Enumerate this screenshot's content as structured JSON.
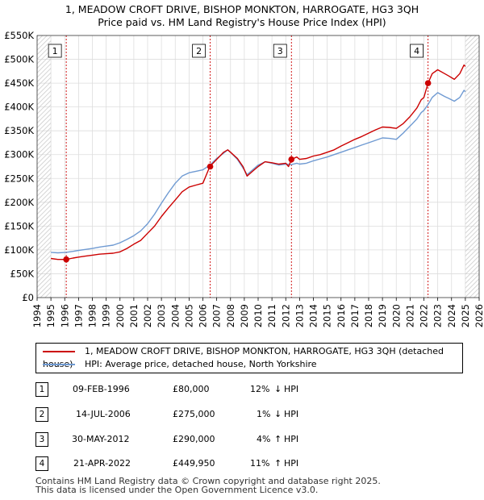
{
  "title_line1": "1, MEADOW CROFT DRIVE, BISHOP MONKTON, HARROGATE, HG3 3QH",
  "title_line2": "Price paid vs. HM Land Registry's House Price Index (HPI)",
  "colors": {
    "property": "#cc0000",
    "hpi": "#6f9ad2",
    "marker_line": "#cc0000",
    "future_hatch": "#cccccc"
  },
  "chart_data": {
    "type": "line",
    "xlim": [
      1994,
      2026
    ],
    "ylim": [
      0,
      550000
    ],
    "y_ticks": [
      {
        "value": 0,
        "label": "£0"
      },
      {
        "value": 50000,
        "label": "£50K"
      },
      {
        "value": 100000,
        "label": "£100K"
      },
      {
        "value": 150000,
        "label": "£150K"
      },
      {
        "value": 200000,
        "label": "£200K"
      },
      {
        "value": 250000,
        "label": "£250K"
      },
      {
        "value": 300000,
        "label": "£300K"
      },
      {
        "value": 350000,
        "label": "£350K"
      },
      {
        "value": 400000,
        "label": "£400K"
      },
      {
        "value": 450000,
        "label": "£450K"
      },
      {
        "value": 500000,
        "label": "£500K"
      },
      {
        "value": 550000,
        "label": "£550K"
      }
    ],
    "x_ticks": [
      1994,
      1995,
      1996,
      1997,
      1998,
      1999,
      2000,
      2001,
      2002,
      2003,
      2004,
      2005,
      2006,
      2007,
      2008,
      2009,
      2010,
      2011,
      2012,
      2013,
      2014,
      2015,
      2016,
      2017,
      2018,
      2019,
      2020,
      2021,
      2022,
      2023,
      2024,
      2025,
      2026
    ],
    "hatched_regions": [
      [
        1994,
        1995.0
      ],
      [
        2025.0,
        2026
      ]
    ],
    "series": [
      {
        "name": "property",
        "points": [
          [
            1995.0,
            82000
          ],
          [
            1995.5,
            80000
          ],
          [
            1996.1,
            80000
          ],
          [
            1996.6,
            83000
          ],
          [
            1997.0,
            85000
          ],
          [
            1997.5,
            87000
          ],
          [
            1998.0,
            89000
          ],
          [
            1998.5,
            91000
          ],
          [
            1999.0,
            92000
          ],
          [
            1999.5,
            93000
          ],
          [
            2000.0,
            96000
          ],
          [
            2000.5,
            103000
          ],
          [
            2001.0,
            112000
          ],
          [
            2001.5,
            120000
          ],
          [
            2002.0,
            135000
          ],
          [
            2002.5,
            150000
          ],
          [
            2003.0,
            170000
          ],
          [
            2003.5,
            188000
          ],
          [
            2004.0,
            205000
          ],
          [
            2004.5,
            222000
          ],
          [
            2005.0,
            232000
          ],
          [
            2005.5,
            236000
          ],
          [
            2006.0,
            240000
          ],
          [
            2006.5,
            275000
          ],
          [
            2007.0,
            290000
          ],
          [
            2007.5,
            305000
          ],
          [
            2007.8,
            310000
          ],
          [
            2008.0,
            305000
          ],
          [
            2008.5,
            292000
          ],
          [
            2008.9,
            275000
          ],
          [
            2009.2,
            255000
          ],
          [
            2009.6,
            265000
          ],
          [
            2010.0,
            275000
          ],
          [
            2010.5,
            285000
          ],
          [
            2011.0,
            283000
          ],
          [
            2011.5,
            280000
          ],
          [
            2012.0,
            282000
          ],
          [
            2012.2,
            275000
          ],
          [
            2012.41,
            290000
          ],
          [
            2012.8,
            295000
          ],
          [
            2013.0,
            290000
          ],
          [
            2013.5,
            292000
          ],
          [
            2014.0,
            297000
          ],
          [
            2014.5,
            300000
          ],
          [
            2015.0,
            305000
          ],
          [
            2015.5,
            310000
          ],
          [
            2016.0,
            318000
          ],
          [
            2016.5,
            325000
          ],
          [
            2017.0,
            332000
          ],
          [
            2017.5,
            338000
          ],
          [
            2018.0,
            345000
          ],
          [
            2018.5,
            352000
          ],
          [
            2019.0,
            358000
          ],
          [
            2019.5,
            357000
          ],
          [
            2020.0,
            355000
          ],
          [
            2020.5,
            365000
          ],
          [
            2021.0,
            380000
          ],
          [
            2021.5,
            398000
          ],
          [
            2021.8,
            415000
          ],
          [
            2022.0,
            420000
          ],
          [
            2022.3,
            449950
          ],
          [
            2022.6,
            470000
          ],
          [
            2023.0,
            478000
          ],
          [
            2023.5,
            470000
          ],
          [
            2023.8,
            465000
          ],
          [
            2024.2,
            458000
          ],
          [
            2024.6,
            470000
          ],
          [
            2024.9,
            488000
          ],
          [
            2025.0,
            485000
          ]
        ]
      },
      {
        "name": "hpi",
        "points": [
          [
            1995.0,
            95000
          ],
          [
            1995.5,
            94000
          ],
          [
            1996.1,
            95000
          ],
          [
            1996.6,
            97000
          ],
          [
            1997.0,
            99000
          ],
          [
            1997.5,
            101000
          ],
          [
            1998.0,
            103000
          ],
          [
            1998.5,
            106000
          ],
          [
            1999.0,
            108000
          ],
          [
            1999.5,
            110000
          ],
          [
            2000.0,
            115000
          ],
          [
            2000.5,
            122000
          ],
          [
            2001.0,
            130000
          ],
          [
            2001.5,
            140000
          ],
          [
            2002.0,
            155000
          ],
          [
            2002.5,
            175000
          ],
          [
            2003.0,
            198000
          ],
          [
            2003.5,
            220000
          ],
          [
            2004.0,
            240000
          ],
          [
            2004.5,
            255000
          ],
          [
            2005.0,
            262000
          ],
          [
            2005.5,
            265000
          ],
          [
            2006.0,
            268000
          ],
          [
            2006.5,
            278000
          ],
          [
            2007.0,
            292000
          ],
          [
            2007.5,
            303000
          ],
          [
            2007.8,
            310000
          ],
          [
            2008.0,
            305000
          ],
          [
            2008.5,
            290000
          ],
          [
            2008.9,
            272000
          ],
          [
            2009.2,
            258000
          ],
          [
            2009.6,
            268000
          ],
          [
            2010.0,
            278000
          ],
          [
            2010.5,
            285000
          ],
          [
            2011.0,
            282000
          ],
          [
            2011.5,
            278000
          ],
          [
            2012.0,
            280000
          ],
          [
            2012.41,
            279000
          ],
          [
            2012.8,
            282000
          ],
          [
            2013.0,
            280000
          ],
          [
            2013.5,
            282000
          ],
          [
            2014.0,
            287000
          ],
          [
            2014.5,
            291000
          ],
          [
            2015.0,
            295000
          ],
          [
            2015.5,
            300000
          ],
          [
            2016.0,
            305000
          ],
          [
            2016.5,
            310000
          ],
          [
            2017.0,
            315000
          ],
          [
            2017.5,
            320000
          ],
          [
            2018.0,
            325000
          ],
          [
            2018.5,
            330000
          ],
          [
            2019.0,
            335000
          ],
          [
            2019.5,
            334000
          ],
          [
            2020.0,
            332000
          ],
          [
            2020.5,
            345000
          ],
          [
            2021.0,
            360000
          ],
          [
            2021.5,
            375000
          ],
          [
            2021.8,
            388000
          ],
          [
            2022.0,
            393000
          ],
          [
            2022.3,
            405000
          ],
          [
            2022.6,
            420000
          ],
          [
            2023.0,
            430000
          ],
          [
            2023.5,
            422000
          ],
          [
            2023.8,
            418000
          ],
          [
            2024.2,
            412000
          ],
          [
            2024.6,
            420000
          ],
          [
            2024.9,
            435000
          ],
          [
            2025.0,
            432000
          ]
        ]
      }
    ],
    "sales": [
      {
        "label": "1",
        "x": 1996.11,
        "y": 80000
      },
      {
        "label": "2",
        "x": 2006.53,
        "y": 275000
      },
      {
        "label": "3",
        "x": 2012.41,
        "y": 290000
      },
      {
        "label": "4",
        "x": 2022.3,
        "y": 449950
      }
    ]
  },
  "legend": {
    "property_label": "1, MEADOW CROFT DRIVE, BISHOP MONKTON, HARROGATE, HG3 3QH (detached house)",
    "hpi_label": "HPI: Average price, detached house, North Yorkshire"
  },
  "transactions": [
    {
      "num": "1",
      "date": "09-FEB-1996",
      "price": "£80,000",
      "pct": "12%",
      "arrow": "↓",
      "hpi": "HPI"
    },
    {
      "num": "2",
      "date": "14-JUL-2006",
      "price": "£275,000",
      "pct": "1%",
      "arrow": "↓",
      "hpi": "HPI"
    },
    {
      "num": "3",
      "date": "30-MAY-2012",
      "price": "£290,000",
      "pct": "4%",
      "arrow": "↑",
      "hpi": "HPI"
    },
    {
      "num": "4",
      "date": "21-APR-2022",
      "price": "£449,950",
      "pct": "11%",
      "arrow": "↑",
      "hpi": "HPI"
    }
  ],
  "footer": {
    "line1": "Contains HM Land Registry data © Crown copyright and database right 2025.",
    "line2": "This data is licensed under the Open Government Licence v3.0."
  }
}
